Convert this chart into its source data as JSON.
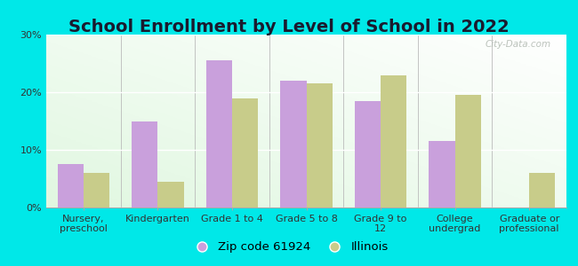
{
  "title": "School Enrollment by Level of School in 2022",
  "categories": [
    "Nursery,\npreschool",
    "Kindergarten",
    "Grade 1 to 4",
    "Grade 5 to 8",
    "Grade 9 to\n12",
    "College\nundergrad",
    "Graduate or\nprofessional"
  ],
  "zip_values": [
    7.5,
    15.0,
    25.5,
    22.0,
    18.5,
    11.5,
    0.0
  ],
  "il_values": [
    6.0,
    4.5,
    19.0,
    21.5,
    23.0,
    19.5,
    6.0
  ],
  "zip_color": "#c9a0dc",
  "il_color": "#c8cc8a",
  "background_outer": "#00e8e8",
  "background_inner_bottom": "#a8e8c0",
  "background_inner_top": "#f8fff8",
  "ylim": [
    0,
    30
  ],
  "yticks": [
    0,
    10,
    20,
    30
  ],
  "ytick_labels": [
    "0%",
    "10%",
    "20%",
    "30%"
  ],
  "zip_label": "Zip code 61924",
  "il_label": "Illinois",
  "title_fontsize": 14,
  "axis_fontsize": 8,
  "legend_fontsize": 9.5,
  "watermark": "City-Data.com"
}
